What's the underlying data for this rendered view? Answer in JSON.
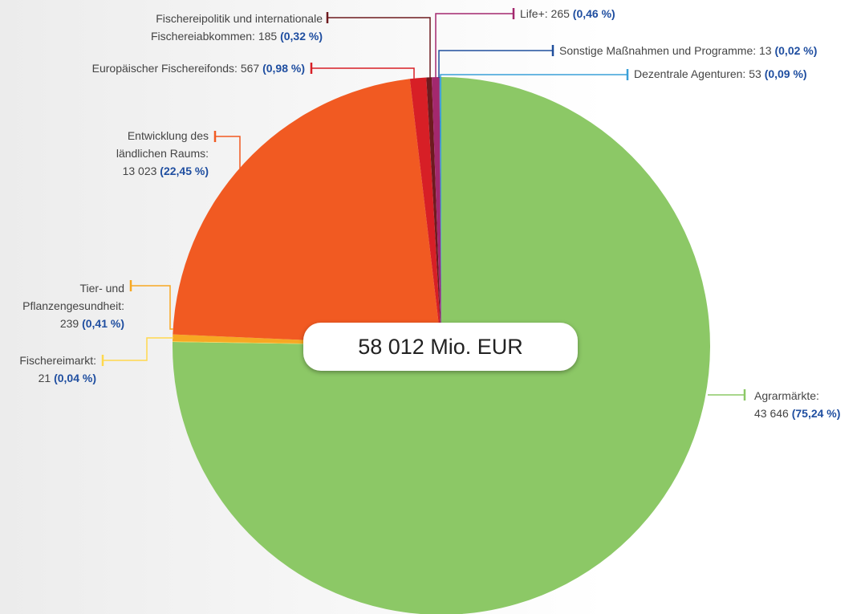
{
  "chart_data": {
    "type": "pie",
    "total_label": "58 012 Mio. EUR",
    "categories": [
      "Agrarmärkte:",
      "Fischereimarkt:",
      "Tier- und Pflanzengesundheit:",
      "Entwicklung des ländlichen Raums:",
      "Europäischer Fischereifonds:",
      "Fischereipolitik und internationale Fischereiabkommen:",
      "Life+:",
      "Sonstige Maßnahmen und Programme:",
      "Dezentrale Agenturen:"
    ],
    "values": [
      43646,
      21,
      239,
      13023,
      567,
      185,
      265,
      13,
      53
    ],
    "value_labels": [
      "43 646",
      "21",
      "239",
      "13 023",
      "567",
      "185",
      "265",
      "13",
      "53"
    ],
    "percentages": [
      75.24,
      0.04,
      0.41,
      22.45,
      0.98,
      0.32,
      0.46,
      0.02,
      0.09
    ],
    "percentage_labels": [
      "(75,24 %)",
      "(0,04 %)",
      "(0,41 %)",
      "(22,45 %)",
      "(0,98 %)",
      "(0,32 %)",
      "(0,46 %)",
      "(0,02 %)",
      "(0,09 %)"
    ],
    "colors": [
      "#8cc866",
      "#ffd84d",
      "#f7a823",
      "#f15a22",
      "#d71f26",
      "#6d1a1f",
      "#a3286e",
      "#1f4e9c",
      "#3aa0d8"
    ]
  }
}
